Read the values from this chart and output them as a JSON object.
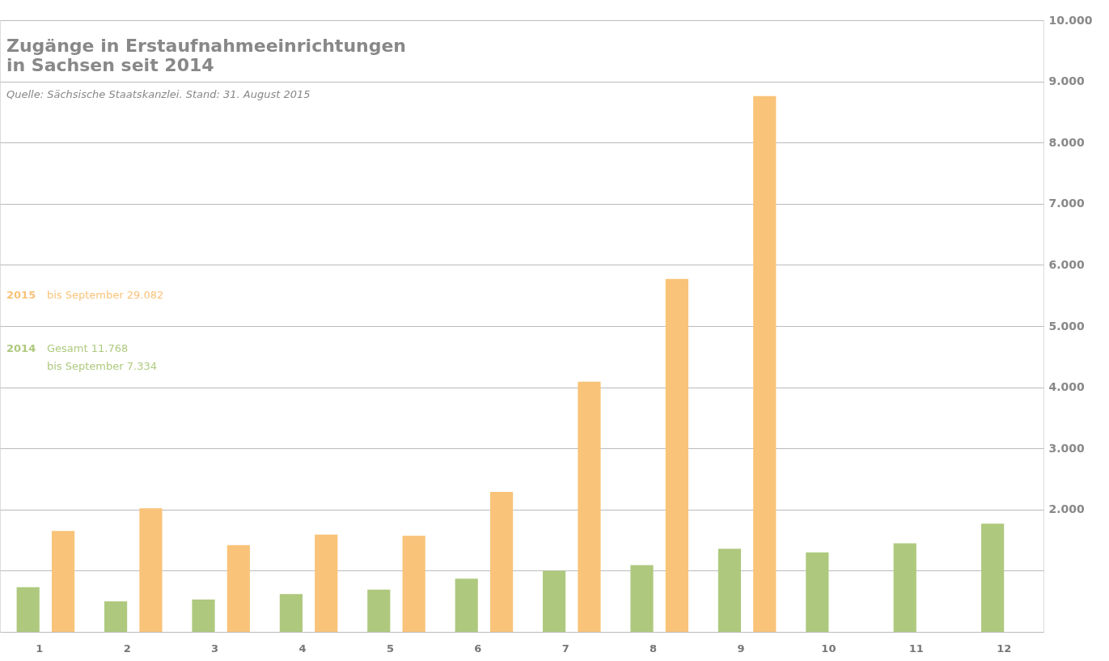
{
  "chart_data": {
    "type": "bar",
    "title": "Zugänge in Erstaufnahmeeinrichtungen\nin Sachsen seit 2014",
    "subtitle": "Quelle: Sächsische Staatskanzlei. Stand: 31. August 2015",
    "categories": [
      "1",
      "2",
      "3",
      "4",
      "5",
      "6",
      "7",
      "8",
      "9",
      "10",
      "11",
      "12"
    ],
    "series": [
      {
        "name": "2014",
        "color": "#aec97e",
        "values": [
          730,
          500,
          530,
          620,
          690,
          870,
          1000,
          1090,
          1360,
          1300,
          1450,
          1770
        ]
      },
      {
        "name": "2015",
        "color": "#f9c379",
        "values": [
          1650,
          2020,
          1420,
          1590,
          1570,
          2290,
          4090,
          5770,
          8760,
          null,
          null,
          null
        ]
      }
    ],
    "annotations": [
      "bis September  29.082",
      "Gesamt            11.768",
      "bis September   7.334"
    ],
    "ylim": [
      0,
      10000
    ],
    "yticks": [
      {
        "value": 0,
        "label": null
      },
      {
        "value": 1000,
        "label": null
      },
      {
        "value": 2000,
        "label": "2.000"
      },
      {
        "value": 3000,
        "label": "3.000"
      },
      {
        "value": 4000,
        "label": "4.000"
      },
      {
        "value": 5000,
        "label": "5.000"
      },
      {
        "value": 6000,
        "label": "6.000"
      },
      {
        "value": 7000,
        "label": "7.000"
      },
      {
        "value": 8000,
        "label": "8.000"
      },
      {
        "value": 9000,
        "label": "9.000"
      },
      {
        "value": 10000,
        "label": "10.000"
      }
    ],
    "grid": "y",
    "legend": "left"
  }
}
